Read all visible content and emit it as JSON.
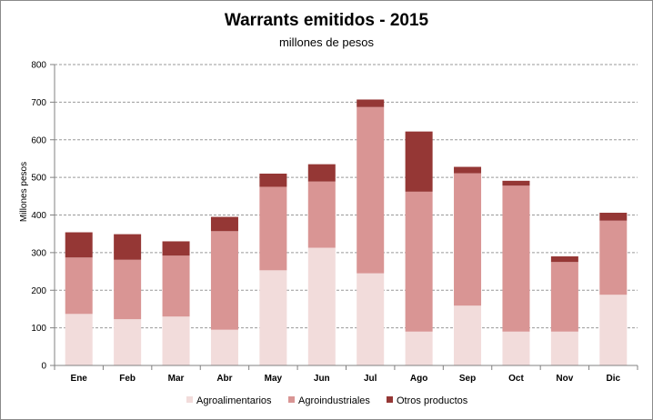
{
  "chart_data": {
    "type": "bar",
    "stacked": true,
    "title": "Warrants  emitidos  - 2015",
    "subtitle": "millones de pesos",
    "xlabel": "",
    "ylabel": "Millones pesos",
    "ylim": [
      0,
      800
    ],
    "yticks": [
      0,
      100,
      200,
      300,
      400,
      500,
      600,
      700,
      800
    ],
    "grid": true,
    "legend_position": "bottom",
    "categories": [
      "Ene",
      "Feb",
      "Mar",
      "Abr",
      "May",
      "Jun",
      "Jul",
      "Ago",
      "Sep",
      "Oct",
      "Nov",
      "Dic"
    ],
    "series": [
      {
        "name": "Agroalimentarios",
        "color": "#f2dcdb",
        "values": [
          137,
          123,
          130,
          95,
          253,
          313,
          245,
          90,
          159,
          90,
          90,
          188
        ]
      },
      {
        "name": "Agroindustriales",
        "color": "#d99594",
        "values": [
          150,
          158,
          162,
          262,
          222,
          176,
          442,
          372,
          352,
          388,
          185,
          197
        ]
      },
      {
        "name": "Otros productos",
        "color": "#953735",
        "values": [
          67,
          68,
          38,
          38,
          35,
          46,
          20,
          160,
          17,
          13,
          15,
          21
        ]
      }
    ]
  }
}
